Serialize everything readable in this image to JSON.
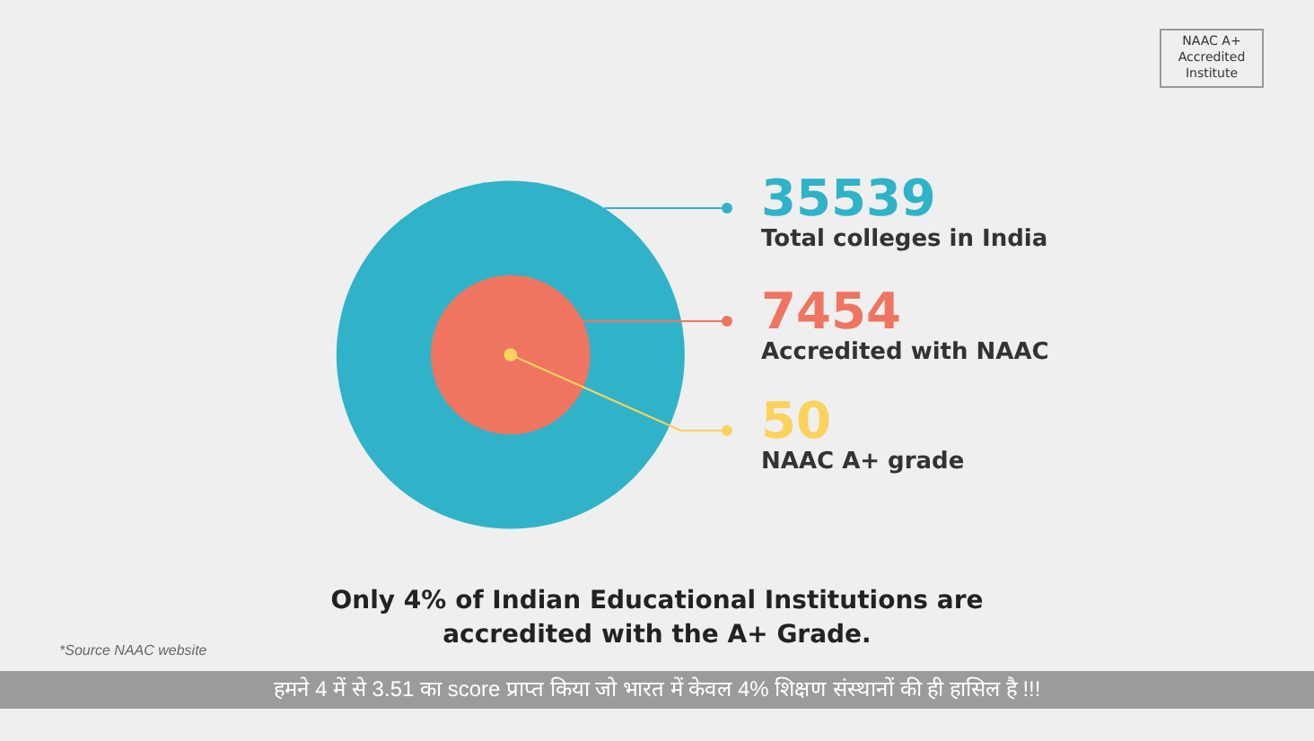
{
  "chart_data": {
    "type": "other",
    "title": "Only 4% of Indian Educational Institutions are accredited with the A+ Grade.",
    "categories": [
      "Total colleges in India",
      "Accredited with NAAC",
      "NAAC A+ grade"
    ],
    "values": [
      35539,
      7454,
      50
    ],
    "colors": [
      "#30b3c9",
      "#ef7560",
      "#fbd25b"
    ],
    "data_labels": true,
    "annotations": [
      "NAAC A+ Accredited Institute",
      "*Source NAAC website",
      "हमने 4 में से 3.51 का score प्राप्त किया जो भारत में केवल 4% शिक्षण संस्थानों की ही हासिल है !!!"
    ]
  }
}
